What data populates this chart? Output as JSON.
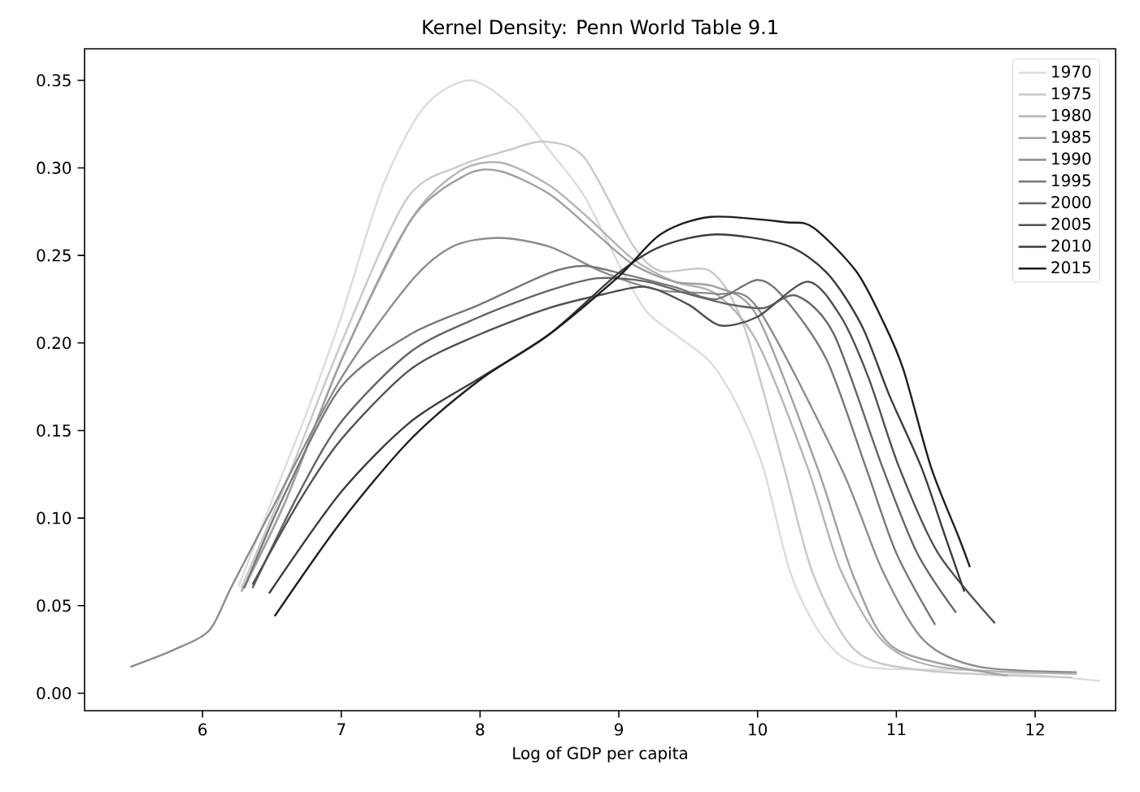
{
  "chart_data": {
    "type": "line",
    "title": "Kernel Density: Penn World Table 9.1",
    "xlabel": "Log of GDP per capita",
    "xlim": [
      5.15,
      12.58
    ],
    "ylim": [
      -0.01,
      0.368
    ],
    "xticks": [
      6,
      7,
      8,
      9,
      10,
      11,
      12
    ],
    "yticks": [
      {
        "value": 0,
        "label": "0.00"
      },
      {
        "value": 0.05,
        "label": "0.05"
      },
      {
        "value": 0.1,
        "label": "0.10"
      },
      {
        "value": 0.15,
        "label": "0.15"
      },
      {
        "value": 0.2,
        "label": "0.20"
      },
      {
        "value": 0.25,
        "label": "0.25"
      },
      {
        "value": 0.3,
        "label": "0.30"
      },
      {
        "value": 0.35,
        "label": "0.35"
      }
    ],
    "grid": false,
    "legend": "top right",
    "marker": "none",
    "line_style": "solid",
    "series": [
      {
        "name": "1970",
        "color": "#dcdcdc",
        "x": [
          6.26,
          6.5,
          6.75,
          7.0,
          7.3,
          7.6,
          7.93,
          8.25,
          8.5,
          8.75,
          9.0,
          9.2,
          9.42,
          9.66,
          9.85,
          10.04,
          10.24,
          10.48,
          10.78,
          11.57,
          12.47
        ],
        "values": [
          0.061,
          0.11,
          0.16,
          0.215,
          0.29,
          0.335,
          0.35,
          0.334,
          0.31,
          0.284,
          0.245,
          0.218,
          0.204,
          0.189,
          0.165,
          0.129,
          0.068,
          0.031,
          0.015,
          0.013,
          0.007
        ]
      },
      {
        "name": "1975",
        "color": "#c8c8c8",
        "x": [
          6.28,
          6.6,
          7.0,
          7.47,
          7.85,
          8.2,
          8.46,
          8.75,
          9.1,
          9.3,
          9.66,
          9.9,
          10.19,
          10.4,
          10.71,
          11.2,
          12.27
        ],
        "values": [
          0.06,
          0.12,
          0.2,
          0.282,
          0.301,
          0.31,
          0.315,
          0.306,
          0.256,
          0.241,
          0.241,
          0.21,
          0.129,
          0.068,
          0.024,
          0.013,
          0.009
        ]
      },
      {
        "name": "1980",
        "color": "#b4b4b4",
        "x": [
          6.3,
          6.6,
          7.0,
          7.5,
          7.85,
          8.15,
          8.5,
          8.8,
          9.1,
          9.4,
          9.7,
          10.0,
          10.36,
          10.6,
          10.9,
          11.3,
          12.3
        ],
        "values": [
          0.06,
          0.11,
          0.19,
          0.27,
          0.298,
          0.303,
          0.29,
          0.27,
          0.248,
          0.235,
          0.228,
          0.2,
          0.129,
          0.07,
          0.03,
          0.015,
          0.011
        ]
      },
      {
        "name": "1985",
        "color": "#a0a0a0",
        "x": [
          6.28,
          6.6,
          7.0,
          7.5,
          7.9,
          8.15,
          8.5,
          8.8,
          9.1,
          9.4,
          9.7,
          10.0,
          10.43,
          10.7,
          11.0,
          11.8
        ],
        "values": [
          0.058,
          0.11,
          0.19,
          0.27,
          0.296,
          0.298,
          0.285,
          0.265,
          0.245,
          0.235,
          0.232,
          0.215,
          0.129,
          0.065,
          0.025,
          0.01
        ]
      },
      {
        "name": "1990",
        "color": "#8c8c8c",
        "x": [
          5.48,
          5.8,
          6.05,
          6.21,
          6.5,
          7.0,
          7.5,
          7.8,
          8.13,
          8.5,
          8.9,
          9.3,
          9.7,
          10.0,
          10.6,
          10.9,
          11.2,
          11.6,
          12.3
        ],
        "values": [
          0.015,
          0.025,
          0.036,
          0.061,
          0.105,
          0.18,
          0.235,
          0.255,
          0.26,
          0.255,
          0.24,
          0.23,
          0.228,
          0.22,
          0.129,
          0.07,
          0.03,
          0.015,
          0.012
        ]
      },
      {
        "name": "1995",
        "color": "#787878",
        "x": [
          6.3,
          6.6,
          7.0,
          7.5,
          8.0,
          8.5,
          8.75,
          9.0,
          9.4,
          9.7,
          10.0,
          10.2,
          10.5,
          10.78,
          11.0,
          11.28
        ],
        "values": [
          0.06,
          0.115,
          0.175,
          0.205,
          0.222,
          0.24,
          0.244,
          0.24,
          0.232,
          0.225,
          0.236,
          0.225,
          0.19,
          0.129,
          0.08,
          0.039
        ]
      },
      {
        "name": "2000",
        "color": "#646464",
        "x": [
          6.36,
          6.7,
          7.0,
          7.5,
          8.0,
          8.5,
          8.85,
          9.2,
          9.5,
          9.8,
          10.05,
          10.28,
          10.55,
          10.9,
          11.15,
          11.43
        ],
        "values": [
          0.06,
          0.115,
          0.155,
          0.195,
          0.215,
          0.23,
          0.237,
          0.235,
          0.228,
          0.222,
          0.22,
          0.227,
          0.205,
          0.129,
          0.08,
          0.046
        ]
      },
      {
        "name": "2005",
        "color": "#505050",
        "x": [
          6.36,
          6.7,
          7.0,
          7.5,
          8.0,
          8.5,
          8.9,
          9.2,
          9.5,
          9.73,
          10.0,
          10.36,
          10.6,
          10.8,
          11.02,
          11.3,
          11.71
        ],
        "values": [
          0.062,
          0.11,
          0.145,
          0.185,
          0.205,
          0.22,
          0.228,
          0.232,
          0.222,
          0.21,
          0.215,
          0.235,
          0.215,
          0.18,
          0.129,
          0.08,
          0.04
        ]
      },
      {
        "name": "2010",
        "color": "#3c3c3c",
        "x": [
          6.48,
          7.0,
          7.5,
          8.0,
          8.5,
          9.0,
          9.3,
          9.7,
          10.2,
          10.5,
          10.75,
          10.95,
          11.18,
          11.35,
          11.49
        ],
        "values": [
          0.057,
          0.115,
          0.155,
          0.18,
          0.205,
          0.24,
          0.255,
          0.262,
          0.256,
          0.24,
          0.21,
          0.17,
          0.129,
          0.09,
          0.058
        ]
      },
      {
        "name": "2015",
        "color": "#1e1e1e",
        "x": [
          6.52,
          7.0,
          7.5,
          8.0,
          8.5,
          9.0,
          9.3,
          9.66,
          10.2,
          10.4,
          10.71,
          10.9,
          11.05,
          11.25,
          11.45,
          11.53
        ],
        "values": [
          0.044,
          0.098,
          0.145,
          0.179,
          0.205,
          0.238,
          0.262,
          0.272,
          0.269,
          0.266,
          0.241,
          0.213,
          0.185,
          0.129,
          0.089,
          0.072
        ]
      }
    ]
  }
}
